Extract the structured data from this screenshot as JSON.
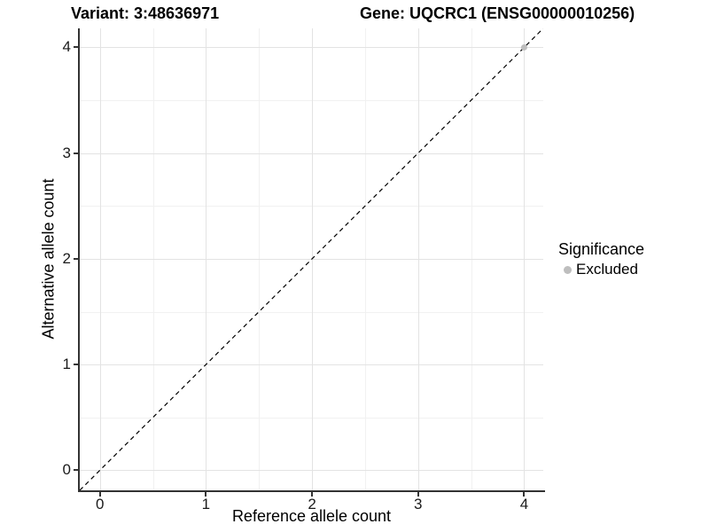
{
  "chart_data": {
    "type": "scatter",
    "titles": {
      "variant": "Variant: 3:48636971",
      "gene": "Gene: UQCRC1 (ENSG00000010256)"
    },
    "xlabel": "Reference allele count",
    "ylabel": "Alternative allele count",
    "x_ticks": [
      0,
      1,
      2,
      3,
      4
    ],
    "y_ticks": [
      0,
      1,
      2,
      3,
      4
    ],
    "xlim": [
      -0.19,
      4.18
    ],
    "ylim": [
      -0.19,
      4.18
    ],
    "grid": "major and minor gridlines, no panel border, dark left/bottom axis lines",
    "points": [
      {
        "x": 4,
        "y": 4,
        "significance": "Excluded",
        "color": "#bebebe"
      }
    ],
    "reference_line": {
      "type": "identity y=x",
      "style": "dashed",
      "color": "#000000"
    },
    "legend": {
      "title": "Significance",
      "position": "right",
      "items": [
        {
          "label": "Excluded",
          "color": "#bebebe"
        }
      ]
    },
    "colors": {
      "background": "#ffffff",
      "major_grid": "#e3e3e3",
      "minor_grid": "#f1f1f1",
      "axis_line": "#333333",
      "tick_text": "#1a1a1a"
    }
  }
}
